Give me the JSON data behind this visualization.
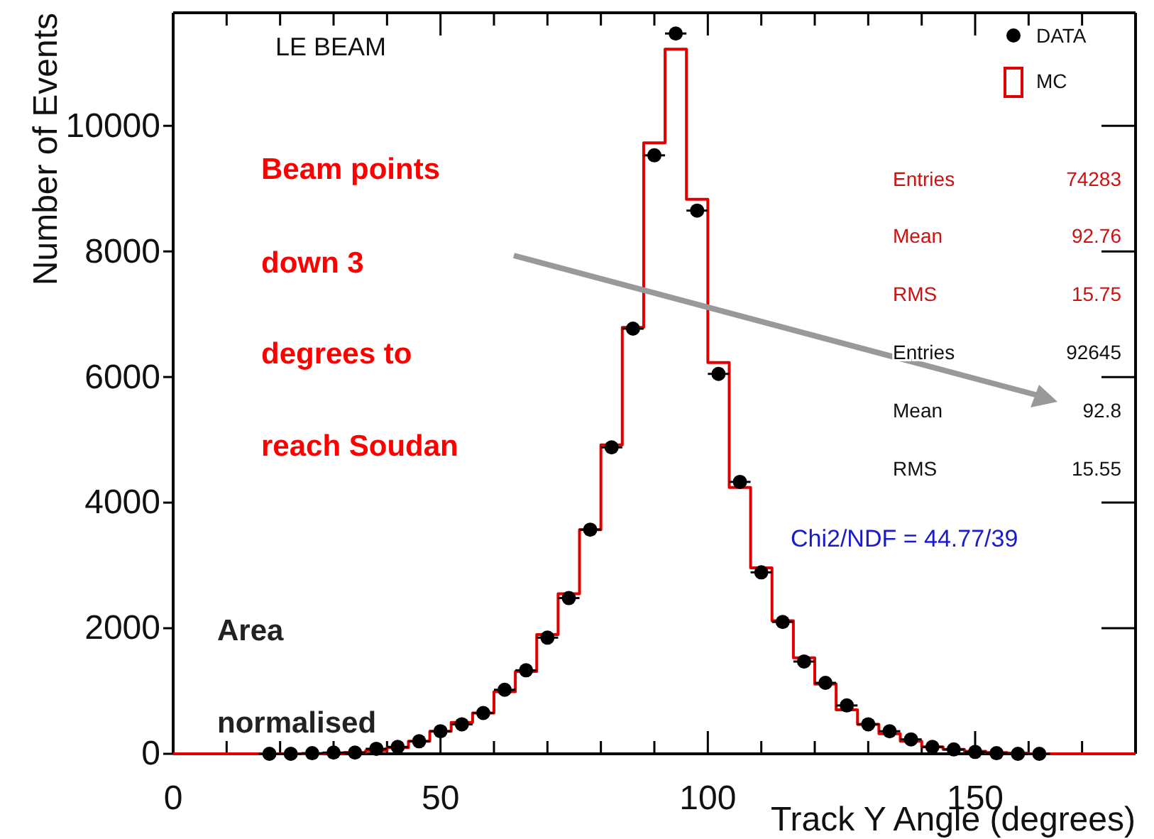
{
  "chart_data": {
    "type": "histogram",
    "xlabel": "Track Y Angle (degrees)",
    "ylabel": "Number of Events",
    "xlim": [
      0,
      180
    ],
    "ylim": [
      0,
      11800
    ],
    "xticks": [
      0,
      {
        "value": 10,
        "label": null
      },
      {
        "value": 20,
        "label": null
      },
      {
        "value": 30,
        "label": null
      },
      {
        "value": 40,
        "label": null
      },
      50,
      {
        "value": 60,
        "label": null
      },
      {
        "value": 70,
        "label": null
      },
      {
        "value": 80,
        "label": null
      },
      {
        "value": 90,
        "label": null
      },
      100,
      {
        "value": 110,
        "label": null
      },
      {
        "value": 120,
        "label": null
      },
      {
        "value": 130,
        "label": null
      },
      {
        "value": 140,
        "label": null
      },
      150,
      {
        "value": 160,
        "label": null
      },
      {
        "value": 170,
        "label": null
      }
    ],
    "yticks": [
      0,
      2000,
      4000,
      6000,
      8000,
      10000
    ],
    "bins": [
      0,
      4,
      8,
      12,
      16,
      20,
      24,
      28,
      32,
      36,
      40,
      44,
      48,
      52,
      56,
      60,
      64,
      68,
      72,
      76,
      80,
      84,
      88,
      92,
      96,
      100,
      104,
      108,
      112,
      116,
      120,
      124,
      128,
      132,
      136,
      140,
      144,
      148,
      152,
      156,
      160,
      164,
      168,
      172,
      176,
      180
    ],
    "series": [
      {
        "name": "MC",
        "color": "#e00000",
        "values": [
          0,
          0,
          0,
          0,
          0,
          0,
          0,
          10,
          20,
          50,
          100,
          200,
          360,
          500,
          650,
          990,
          1310,
          1900,
          2550,
          3570,
          4920,
          6790,
          9730,
          11220,
          8830,
          6230,
          4240,
          2960,
          2120,
          1530,
          1110,
          700,
          470,
          320,
          200,
          110,
          70,
          40,
          20,
          10,
          0,
          0,
          0,
          0,
          0
        ]
      },
      {
        "name": "DATA",
        "type": "scatter",
        "color": "#000000",
        "marker": "circle",
        "x": [
          18,
          22,
          26,
          30,
          34,
          38,
          42,
          46,
          50,
          54,
          58,
          62,
          66,
          70,
          74,
          78,
          82,
          86,
          90,
          94,
          98,
          102,
          106,
          110,
          114,
          118,
          122,
          126,
          130,
          134,
          138,
          142,
          146,
          150,
          154,
          158,
          162
        ],
        "values": [
          0,
          0,
          10,
          20,
          20,
          80,
          110,
          200,
          360,
          470,
          650,
          1020,
          1330,
          1850,
          2480,
          3570,
          4880,
          6770,
          9530,
          11470,
          8650,
          6050,
          4330,
          2890,
          2100,
          1470,
          1130,
          770,
          470,
          360,
          230,
          110,
          70,
          30,
          10,
          0,
          0
        ],
        "xerrors": [
          2,
          2,
          2,
          2,
          2,
          2,
          2,
          2,
          2,
          2,
          2,
          2,
          2,
          2,
          2,
          2,
          2,
          2,
          2,
          2,
          2,
          2,
          2,
          2,
          2,
          2,
          2,
          2,
          2,
          2,
          2,
          2,
          2,
          2,
          2,
          2,
          2
        ]
      }
    ],
    "legend": "top right",
    "annotations": [
      "LE BEAM",
      "Beam points",
      "down 3",
      "degrees to",
      "reach Soudan",
      "Area",
      "normalised",
      "Entries",
      "74283",
      "Mean",
      "92.76",
      "RMS",
      "15.75",
      "Entries",
      "92645",
      "Mean",
      "92.8",
      "RMS",
      "15.55",
      "Chi2/NDF = 44.77/39"
    ]
  }
}
